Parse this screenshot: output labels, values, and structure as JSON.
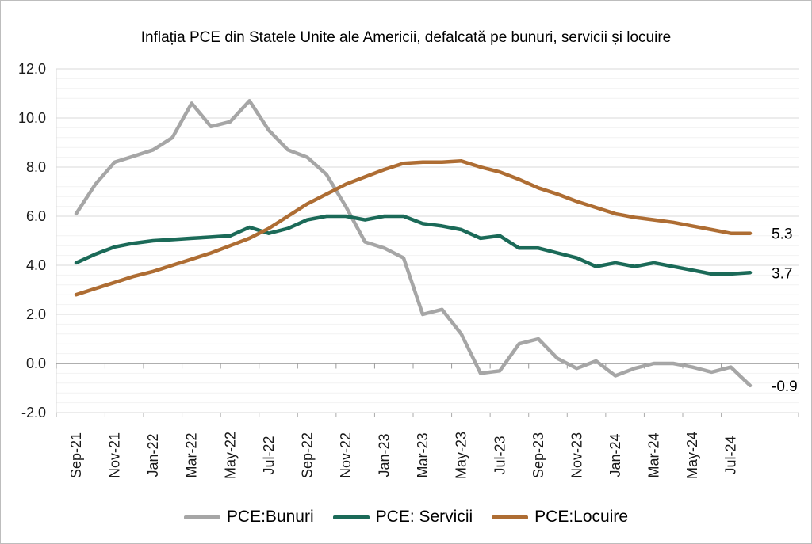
{
  "chart_data": {
    "type": "line",
    "title": "Inflația PCE din Statele Unite ale Americii, defalcată pe bunuri, servicii și locuire",
    "x": [
      "Sep-21",
      "Oct-21",
      "Nov-21",
      "Dec-21",
      "Jan-22",
      "Feb-22",
      "Mar-22",
      "Apr-22",
      "May-22",
      "Jun-22",
      "Jul-22",
      "Aug-22",
      "Sep-22",
      "Oct-22",
      "Nov-22",
      "Dec-22",
      "Jan-23",
      "Feb-23",
      "Mar-23",
      "Apr-23",
      "May-23",
      "Jun-23",
      "Jul-23",
      "Aug-23",
      "Sep-23",
      "Oct-23",
      "Nov-23",
      "Dec-23",
      "Jan-24",
      "Feb-24",
      "Mar-24",
      "Apr-24",
      "May-24",
      "Jun-24",
      "Jul-24",
      "Aug-24"
    ],
    "x_tick_labels": [
      "Sep-21",
      "Nov-21",
      "Jan-22",
      "Mar-22",
      "May-22",
      "Jul-22",
      "Sep-22",
      "Nov-22",
      "Jan-23",
      "Mar-23",
      "May-23",
      "Jul-23",
      "Sep-23",
      "Nov-23",
      "Jan-24",
      "Mar-24",
      "May-24",
      "Jul-24"
    ],
    "y_tick_labels": [
      "12.0",
      "10.0",
      "8.0",
      "6.0",
      "4.0",
      "2.0",
      "0.0",
      "-2.0"
    ],
    "ylim": [
      -2,
      12
    ],
    "y_major_step": 2,
    "y_minor_step": 0.4,
    "grid": true,
    "legend_position": "bottom",
    "series": [
      {
        "name": "PCE:Bunuri",
        "color": "#A6A6A6",
        "end_label": "-0.9",
        "values": [
          6.1,
          7.3,
          8.2,
          8.45,
          8.7,
          9.2,
          10.6,
          9.65,
          9.85,
          10.7,
          9.5,
          8.7,
          8.4,
          7.7,
          6.4,
          4.95,
          4.7,
          4.3,
          2.0,
          2.2,
          1.2,
          -0.4,
          -0.3,
          0.8,
          1.0,
          0.2,
          -0.2,
          0.1,
          -0.5,
          -0.2,
          0.0,
          0.0,
          -0.15,
          -0.35,
          -0.15,
          -0.9
        ]
      },
      {
        "name": "PCE: Servicii",
        "color": "#1B6A58",
        "end_label": "3.7",
        "values": [
          4.1,
          4.45,
          4.75,
          4.9,
          5.0,
          5.05,
          5.1,
          5.15,
          5.2,
          5.55,
          5.3,
          5.5,
          5.85,
          6.0,
          6.0,
          5.85,
          6.0,
          6.0,
          5.7,
          5.6,
          5.45,
          5.1,
          5.2,
          4.7,
          4.7,
          4.5,
          4.3,
          3.95,
          4.1,
          3.95,
          4.1,
          3.95,
          3.8,
          3.65,
          3.65,
          3.7
        ]
      },
      {
        "name": "PCE:Locuire",
        "color": "#AE6D33",
        "end_label": "5.3",
        "values": [
          2.8,
          3.05,
          3.3,
          3.55,
          3.75,
          4.0,
          4.25,
          4.5,
          4.8,
          5.1,
          5.5,
          6.0,
          6.5,
          6.9,
          7.3,
          7.6,
          7.9,
          8.15,
          8.2,
          8.2,
          8.25,
          8.0,
          7.8,
          7.5,
          7.15,
          6.9,
          6.6,
          6.35,
          6.1,
          5.95,
          5.85,
          5.75,
          5.6,
          5.45,
          5.3,
          5.3
        ]
      }
    ]
  },
  "colors": {
    "grid_major": "#D9D9D9",
    "grid_minor": "#F2F2F2",
    "axis_zero": "#7F7F7F",
    "tick": "#9B9B9B",
    "tick_bottom": "#ABABAB",
    "axis_text": "#1A1A1A",
    "end_label_text": "#000000",
    "figure_border": "#BDBDBD"
  }
}
